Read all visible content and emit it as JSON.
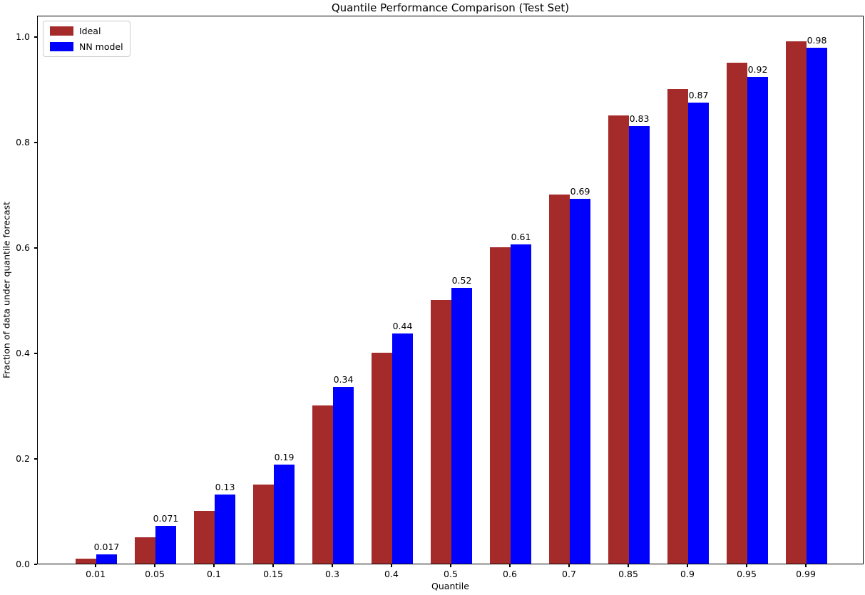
{
  "chart_data": {
    "type": "bar",
    "title": "Quantile Performance Comparison (Test Set)",
    "xlabel": "Quantile",
    "ylabel": "Fraction of data under quantile forecast",
    "categories": [
      "0.01",
      "0.05",
      "0.1",
      "0.15",
      "0.3",
      "0.4",
      "0.5",
      "0.6",
      "0.7",
      "0.85",
      "0.9",
      "0.95",
      "0.99"
    ],
    "series": [
      {
        "name": "Ideal",
        "color": "#A52A2A",
        "values": [
          0.01,
          0.05,
          0.1,
          0.15,
          0.3,
          0.4,
          0.5,
          0.6,
          0.7,
          0.85,
          0.9,
          0.95,
          0.99
        ]
      },
      {
        "name": "NN model",
        "color": "#0000FF",
        "values": [
          0.017,
          0.071,
          0.131,
          0.188,
          0.335,
          0.436,
          0.523,
          0.606,
          0.692,
          0.83,
          0.874,
          0.923,
          0.979
        ],
        "labels": [
          "0.017",
          "0.071",
          "0.13",
          "0.19",
          "0.34",
          "0.44",
          "0.52",
          "0.61",
          "0.69",
          "0.83",
          "0.87",
          "0.92",
          "0.98"
        ]
      }
    ],
    "yticks": [
      "0.0",
      "0.2",
      "0.4",
      "0.6",
      "0.8",
      "1.0"
    ],
    "ylim": [
      0,
      1.04
    ],
    "legend_position": "upper left",
    "grid": false
  }
}
